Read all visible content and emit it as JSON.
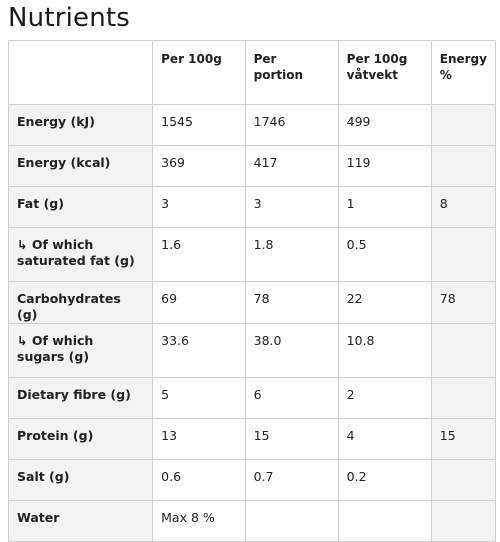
{
  "title": "Nutrients",
  "table": {
    "headers": [
      "",
      "Per 100g",
      "Per portion",
      "Per 100g\nvåtvekt",
      "Energy\n%"
    ],
    "rows": [
      {
        "label": "Energy (kJ)",
        "per100g": "1545",
        "perportion": "1746",
        "wet": "499",
        "energy": ""
      },
      {
        "label": "Energy (kcal)",
        "per100g": "369",
        "perportion": "417",
        "wet": "119",
        "energy": ""
      },
      {
        "label": "Fat (g)",
        "per100g": "3",
        "perportion": "3",
        "wet": "1",
        "energy": "8"
      },
      {
        "label": "↳ Of which saturated fat (g)",
        "per100g": "1.6",
        "perportion": "1.8",
        "wet": "0.5",
        "energy": ""
      },
      {
        "label": "Carbohydrates (g)",
        "per100g": "69",
        "perportion": "78",
        "wet": "22",
        "energy": "78"
      },
      {
        "label": "↳ Of which sugars (g)",
        "per100g": "33.6",
        "perportion": "38.0",
        "wet": "10.8",
        "energy": ""
      },
      {
        "label": "Dietary fibre (g)",
        "per100g": "5",
        "perportion": "6",
        "wet": "2",
        "energy": ""
      },
      {
        "label": "Protein (g)",
        "per100g": "13",
        "perportion": "15",
        "wet": "4",
        "energy": "15"
      },
      {
        "label": "Salt (g)",
        "per100g": "0.6",
        "perportion": "0.7",
        "wet": "0.2",
        "energy": ""
      },
      {
        "label": "Water",
        "per100g": "Max 8 %",
        "perportion": "",
        "wet": "",
        "energy": ""
      }
    ]
  }
}
